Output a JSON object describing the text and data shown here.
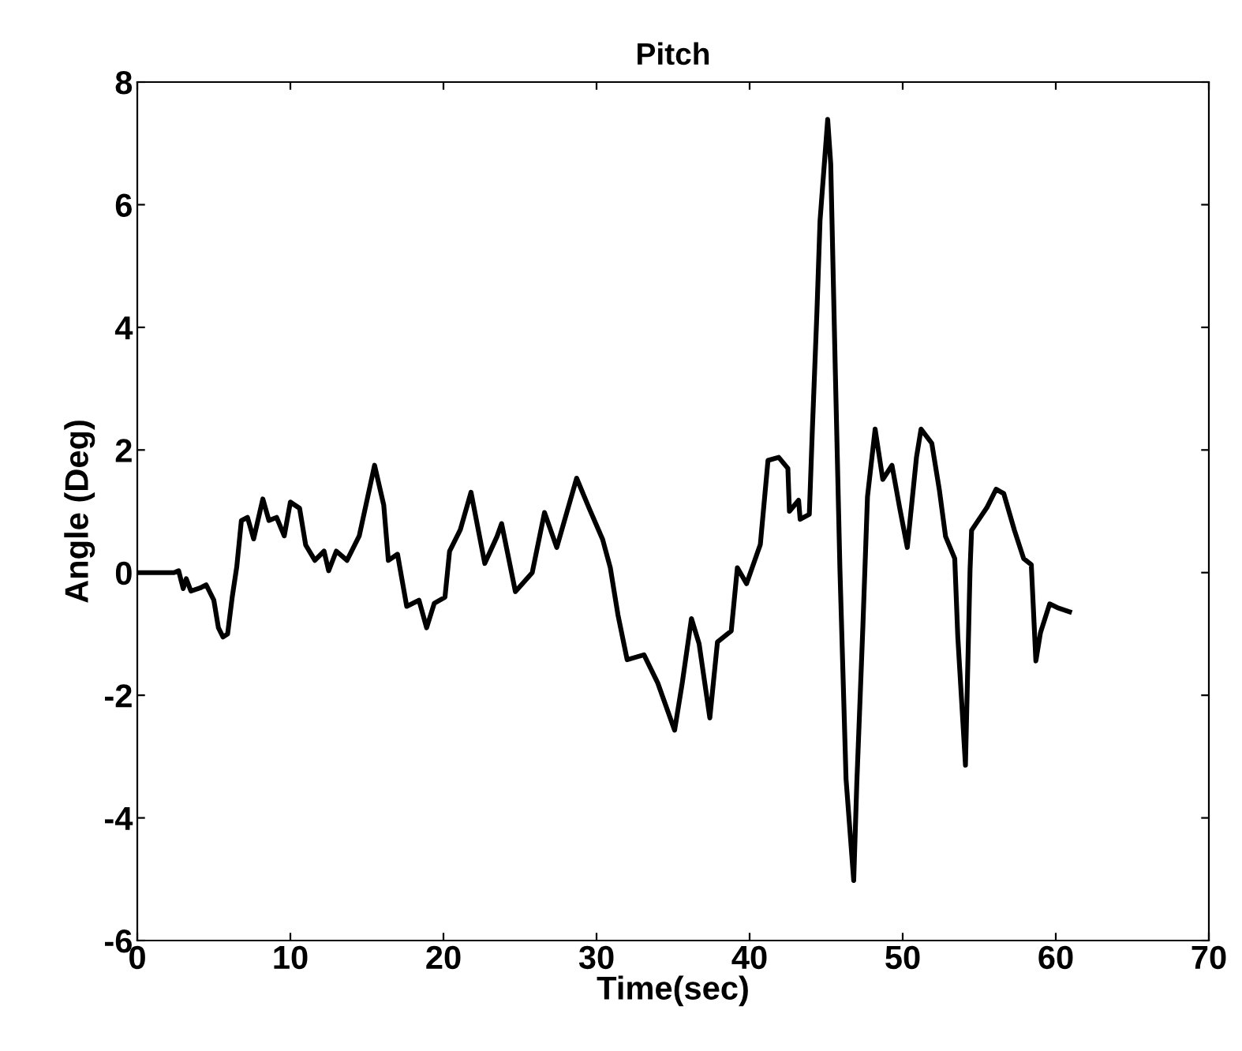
{
  "chart_data": {
    "type": "line",
    "title": "Pitch",
    "xlabel": "Time(sec)",
    "ylabel": "Angle (Deg)",
    "xlim": [
      0,
      70
    ],
    "ylim": [
      -6,
      8
    ],
    "xticks": [
      0,
      10,
      20,
      30,
      40,
      50,
      60,
      70
    ],
    "yticks": [
      -6,
      -4,
      -2,
      0,
      2,
      4,
      6,
      8
    ],
    "grid": false,
    "legend": false,
    "marker": "none",
    "line_style": "solid",
    "series": [
      {
        "color": "#000000",
        "x": [
          0,
          2.4,
          2.7,
          3.0,
          3.2,
          3.5,
          4.1,
          4.5,
          5.0,
          5.3,
          5.6,
          5.9,
          6.2,
          6.5,
          6.8,
          7.2,
          7.6,
          8.2,
          8.6,
          9.1,
          9.6,
          10.0,
          10.6,
          11.0,
          11.6,
          12.2,
          12.5,
          13.0,
          13.7,
          14.5,
          15.5,
          16.1,
          16.4,
          17.0,
          17.6,
          18.4,
          18.9,
          19.4,
          20.1,
          20.4,
          21.1,
          21.8,
          22.7,
          23.5,
          23.8,
          24.7,
          25.8,
          26.6,
          27.4,
          28.7,
          29.5,
          30.4,
          30.9,
          31.4,
          32.0,
          33.1,
          34.0,
          35.1,
          35.6,
          36.2,
          36.7,
          37.4,
          37.9,
          38.8,
          39.2,
          39.8,
          40.7,
          41.2,
          41.9,
          42.5,
          42.6,
          43.2,
          43.3,
          43.9,
          44.1,
          44.4,
          44.6,
          45.1,
          45.3,
          45.6,
          45.9,
          46.3,
          46.8,
          47.0,
          47.4,
          47.7,
          48.2,
          48.7,
          49.3,
          49.8,
          50.3,
          50.9,
          51.2,
          51.9,
          52.4,
          52.8,
          53.4,
          53.6,
          54.1,
          54.4,
          54.5,
          55.2,
          55.5,
          56.1,
          56.6,
          57.3,
          57.9,
          58.4,
          58.7,
          59.0,
          59.6,
          60.1,
          60.9
        ],
        "values": [
          0,
          0,
          0.03,
          -0.26,
          -0.1,
          -0.3,
          -0.25,
          -0.2,
          -0.45,
          -0.9,
          -1.05,
          -1.0,
          -0.4,
          0.1,
          0.85,
          0.9,
          0.55,
          1.2,
          0.85,
          0.9,
          0.6,
          1.15,
          1.05,
          0.45,
          0.2,
          0.35,
          0.03,
          0.35,
          0.2,
          0.6,
          1.75,
          1.1,
          0.2,
          0.3,
          -0.55,
          -0.45,
          -0.9,
          -0.5,
          -0.4,
          0.35,
          0.7,
          1.31,
          0.15,
          0.59,
          0.8,
          -0.31,
          0,
          0.98,
          0.41,
          1.54,
          1.06,
          0.54,
          0.08,
          -0.69,
          -1.42,
          -1.34,
          -1.8,
          -2.57,
          -1.8,
          -0.75,
          -1.16,
          -2.37,
          -1.13,
          -0.95,
          0.08,
          -0.18,
          0.46,
          1.83,
          1.88,
          1.7,
          1.0,
          1.18,
          0.87,
          0.95,
          2.34,
          4.27,
          5.74,
          7.39,
          6.66,
          3.27,
          0.05,
          -3.37,
          -5.02,
          -3.45,
          -0.87,
          1.24,
          2.34,
          1.52,
          1.75,
          1.06,
          0.41,
          1.88,
          2.34,
          2.11,
          1.34,
          0.59,
          0.23,
          -1.05,
          -3.14,
          0.05,
          0.69,
          0.95,
          1.06,
          1.36,
          1.29,
          0.69,
          0.23,
          0.13,
          -1.44,
          -0.98,
          -0.51,
          -0.57,
          -0.64
        ]
      }
    ]
  }
}
